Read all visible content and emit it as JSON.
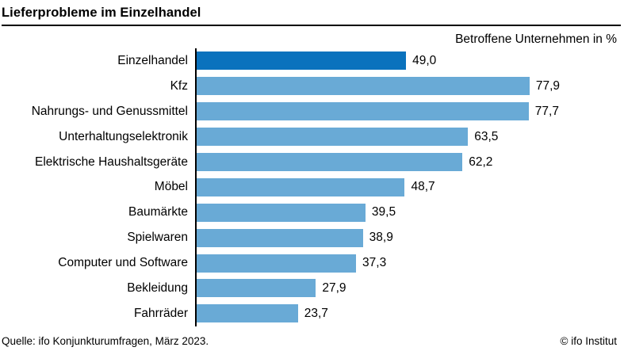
{
  "header": {
    "title": "Lieferprobleme im Einzelhandel",
    "subtitle": "Betroffene Unternehmen in %"
  },
  "chart_data": {
    "type": "bar",
    "orientation": "horizontal",
    "title": "Lieferprobleme im Einzelhandel",
    "subtitle": "Betroffene Unternehmen in %",
    "categories": [
      "Einzelhandel",
      "Kfz",
      "Nahrungs- und Genussmittel",
      "Unterhaltungselektronik",
      "Elektrische Haushaltsgeräte",
      "Möbel",
      "Baumärkte",
      "Spielwaren",
      "Computer und Software",
      "Bekleidung",
      "Fahrräder"
    ],
    "values": [
      49.0,
      77.9,
      77.7,
      63.5,
      62.2,
      48.7,
      39.5,
      38.9,
      37.3,
      27.9,
      23.7
    ],
    "value_labels": [
      "49,0",
      "77,9",
      "77,7",
      "63,5",
      "62,2",
      "48,7",
      "39,5",
      "38,9",
      "37,3",
      "27,9",
      "23,7"
    ],
    "xlim": [
      0,
      100
    ],
    "grid": false,
    "legend": "none",
    "highlight_index": 0,
    "colors": {
      "bar": "#69aad6",
      "highlight": "#0a72bd",
      "axis": "#000000"
    }
  },
  "footer": {
    "source": "Quelle: ifo Konjunkturumfragen, März 2023.",
    "copyright": "© ifo Institut"
  }
}
